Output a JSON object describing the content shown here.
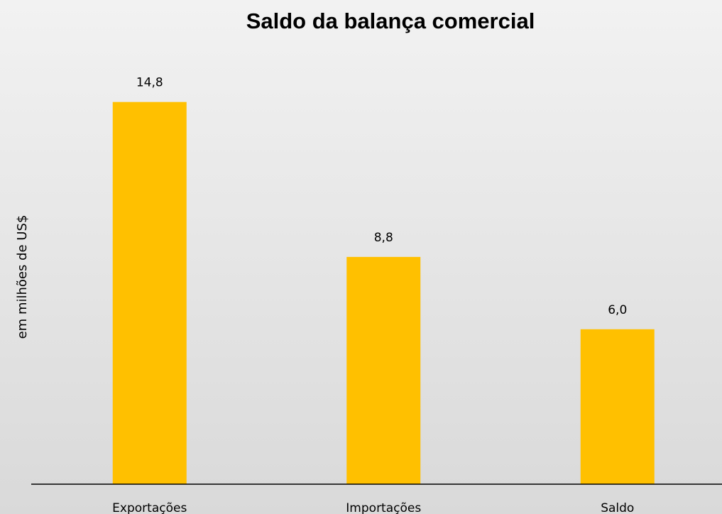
{
  "chart_data": {
    "type": "bar",
    "title": "Saldo da balança comercial",
    "y_label": "em milhões de US$",
    "categories": [
      "Exportações",
      "Importações",
      "Saldo"
    ],
    "values": [
      14.8,
      8.8,
      6.0
    ],
    "value_labels": [
      "14,8",
      "8,8",
      "6,0"
    ],
    "color": "#ffc000",
    "ylim": [
      0,
      16
    ]
  }
}
